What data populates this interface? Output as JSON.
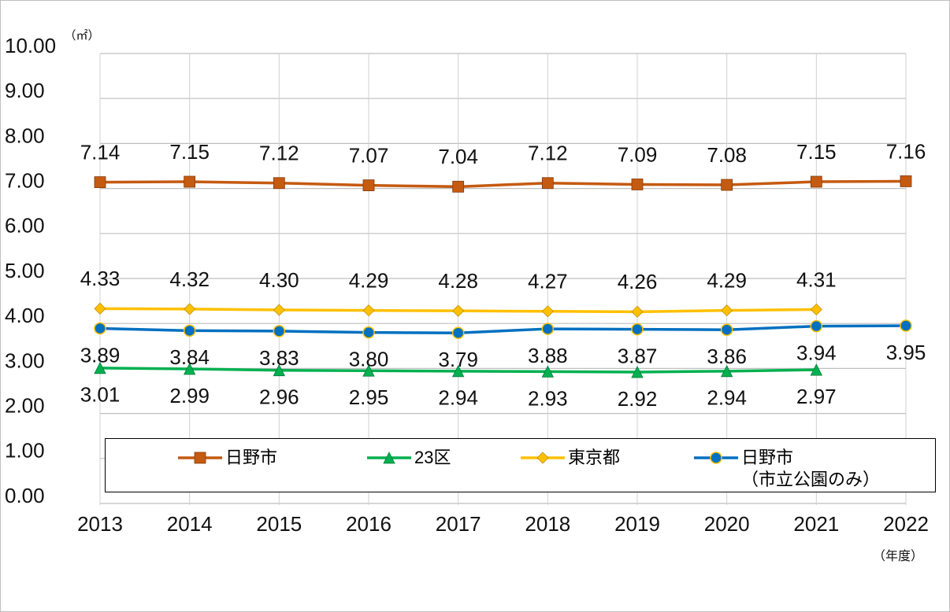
{
  "chart_data": {
    "type": "line",
    "ylabel": "（㎡）",
    "xlabel": "（年度）",
    "categories": [
      "2013",
      "2014",
      "2015",
      "2016",
      "2017",
      "2018",
      "2019",
      "2020",
      "2021",
      "2022"
    ],
    "series": [
      {
        "name": "日野市",
        "color": "#c55a11",
        "marker": "square",
        "label_side": "above",
        "values": [
          7.14,
          7.15,
          7.12,
          7.07,
          7.04,
          7.12,
          7.09,
          7.08,
          7.15,
          7.16
        ],
        "value_labels": [
          "7.14",
          "7.15",
          "7.12",
          "7.07",
          "7.04",
          "7.12",
          "7.09",
          "7.08",
          "7.15",
          "7.16"
        ]
      },
      {
        "name": "23区",
        "color": "#00b050",
        "marker": "triangle",
        "label_side": "below",
        "values": [
          3.01,
          2.99,
          2.96,
          2.95,
          2.94,
          2.93,
          2.92,
          2.94,
          2.97,
          null
        ],
        "value_labels": [
          "3.01",
          "2.99",
          "2.96",
          "2.95",
          "2.94",
          "2.93",
          "2.92",
          "2.94",
          "2.97",
          null
        ]
      },
      {
        "name": "東京都",
        "color": "#ffc000",
        "marker": "diamond",
        "label_side": "above",
        "values": [
          4.33,
          4.32,
          4.3,
          4.29,
          4.28,
          4.27,
          4.26,
          4.29,
          4.31,
          null
        ],
        "value_labels": [
          "4.33",
          "4.32",
          "4.30",
          "4.29",
          "4.28",
          "4.27",
          "4.26",
          "4.29",
          "4.31",
          null
        ]
      },
      {
        "name": "日野市\n（市立公園のみ）",
        "color": "#0070c0",
        "marker": "circle",
        "label_side": "below",
        "values": [
          3.89,
          3.84,
          3.83,
          3.8,
          3.79,
          3.88,
          3.87,
          3.86,
          3.94,
          3.95
        ],
        "value_labels": [
          "3.89",
          "3.84",
          "3.83",
          "3.80",
          "3.79",
          "3.88",
          "3.87",
          "3.86",
          "3.94",
          "3.95"
        ]
      }
    ],
    "ylim": [
      0,
      10
    ],
    "yticks": [
      {
        "value": 0,
        "label": "0.00"
      },
      {
        "value": 1,
        "label": "1.00"
      },
      {
        "value": 2,
        "label": "2.00"
      },
      {
        "value": 3,
        "label": "3.00"
      },
      {
        "value": 4,
        "label": "4.00"
      },
      {
        "value": 5,
        "label": "5.00"
      },
      {
        "value": 6,
        "label": "6.00"
      },
      {
        "value": 7,
        "label": "7.00"
      },
      {
        "value": 8,
        "label": "8.00"
      },
      {
        "value": 9,
        "label": "9.00"
      },
      {
        "value": 10,
        "label": "10.00"
      }
    ],
    "grid": true,
    "legend": "bottom"
  }
}
